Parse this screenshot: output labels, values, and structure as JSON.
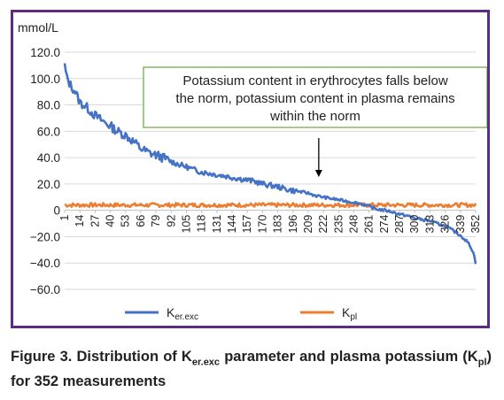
{
  "chart_data": {
    "type": "line",
    "ylabel": "mmol/L",
    "ylim": [
      -60,
      120
    ],
    "yticks": [
      "120.0",
      "100.0",
      "80.0",
      "60.0",
      "40.0",
      "20.0",
      "0",
      "−20.0",
      "−40.0",
      "−60.0"
    ],
    "ytick_values": [
      120,
      100,
      80,
      60,
      40,
      20,
      0,
      -20,
      -40,
      -60
    ],
    "xlim": [
      1,
      352
    ],
    "xticks": [
      "1",
      "14",
      "27",
      "40",
      "53",
      "66",
      "79",
      "92",
      "105",
      "118",
      "131",
      "144",
      "157",
      "170",
      "183",
      "196",
      "209",
      "222",
      "235",
      "248",
      "261",
      "274",
      "287",
      "300",
      "313",
      "326",
      "339",
      "352"
    ],
    "xtick_values": [
      1,
      14,
      27,
      40,
      53,
      66,
      79,
      92,
      105,
      118,
      131,
      144,
      157,
      170,
      183,
      196,
      209,
      222,
      235,
      248,
      261,
      274,
      287,
      300,
      313,
      326,
      339,
      352
    ],
    "grid": true,
    "legend": "bottom",
    "series": [
      {
        "name_main": "K",
        "name_sub": "er.exc",
        "color": "#4472c4",
        "x": [
          1,
          3,
          6,
          10,
          14,
          20,
          27,
          33,
          40,
          46,
          53,
          60,
          66,
          72,
          79,
          85,
          92,
          98,
          105,
          111,
          118,
          125,
          131,
          138,
          144,
          150,
          157,
          163,
          170,
          176,
          183,
          190,
          196,
          203,
          209,
          216,
          222,
          228,
          235,
          241,
          248,
          254,
          261,
          267,
          274,
          280,
          287,
          293,
          300,
          306,
          313,
          319,
          326,
          332,
          339,
          345,
          348,
          350,
          352
        ],
        "y": [
          110,
          100,
          95,
          90,
          82,
          78,
          72,
          68,
          64,
          60,
          57,
          52,
          47,
          44,
          42,
          40,
          37,
          35,
          33,
          31,
          29,
          28,
          27,
          26,
          25,
          24,
          23,
          22,
          20,
          19,
          18,
          16,
          15,
          14,
          13,
          11,
          10,
          9,
          8,
          7,
          6,
          5,
          3,
          1,
          0,
          -1,
          -3,
          -4,
          -6,
          -7,
          -8,
          -10,
          -12,
          -15,
          -19,
          -24,
          -28,
          -32,
          -40
        ]
      },
      {
        "name_main": "K",
        "name_sub": "pl",
        "color": "#ed7d31",
        "x": [
          1,
          352
        ],
        "y": [
          4,
          4
        ]
      }
    ],
    "annotation": {
      "lines": [
        "Potassium content in erythrocytes falls below",
        "the norm, potassium content in plasma remains",
        "within the norm"
      ],
      "arrow_target": {
        "x": 218,
        "y": 8
      },
      "border_color": "#70ad47"
    }
  },
  "caption": {
    "prefix": "Figure 3. Distribution of ",
    "k1_main": "K",
    "k1_sub": "er.exc",
    "middle": " parameter and plasma potassium (",
    "k2_main": "K",
    "k2_sub": "pl",
    "suffix": ") for 352 measurements"
  }
}
